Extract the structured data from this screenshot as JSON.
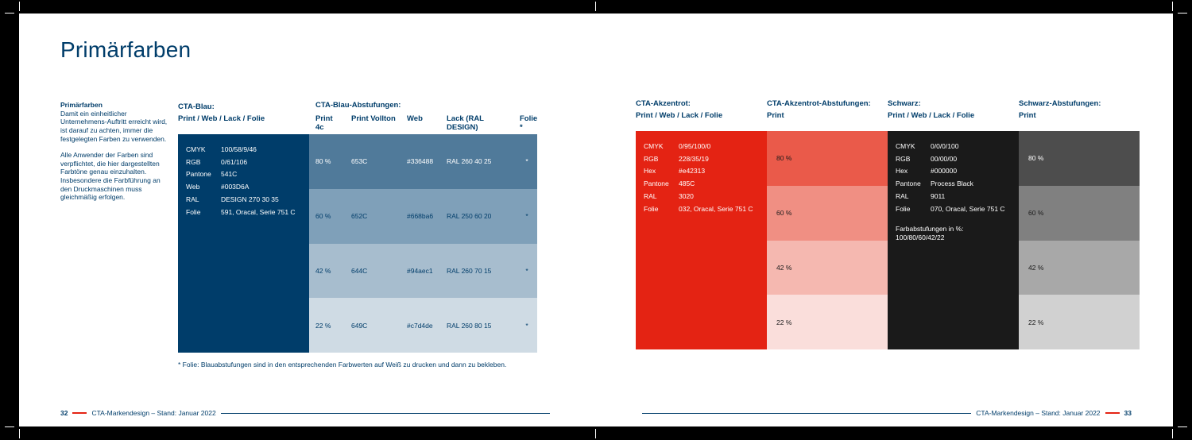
{
  "title": "Primärfarben",
  "intro": {
    "heading": "Primärfarben",
    "p1": "Damit ein einheitlicher Unternehmens-Auftritt erreicht wird, ist darauf zu achten, immer die festgelegten Farben zu verwenden.",
    "p2": "Alle Anwender der Farben sind verpflichtet, die hier dargestellten Farbtöne genau einzuhalten. Insbesondere die Farbführung an den Druckmaschinen muss gleichmäßig erfolgen."
  },
  "blue": {
    "title": "CTA-Blau:",
    "sub": "Print / Web / Lack / Folie",
    "bg": "#003d6a",
    "rows": [
      {
        "k": "CMYK",
        "v": "100/58/9/46"
      },
      {
        "k": "RGB",
        "v": "0/61/106"
      },
      {
        "k": "Pantone",
        "v": "541C"
      },
      {
        "k": "Web",
        "v": "#003D6A"
      },
      {
        "k": "RAL",
        "v": "DESIGN 270 30 35"
      },
      {
        "k": "Folie",
        "v": "591, Oracal, Serie 751 C"
      }
    ]
  },
  "blue_tints": {
    "title": "CTA-Blau-Abstufungen:",
    "headers": {
      "pct": "Print 4c",
      "pv": "Print Vollton",
      "web": "Web",
      "lack": "Lack (RAL DESIGN)",
      "folie": "Folie *"
    },
    "rows": [
      {
        "pct": "80 %",
        "pv": "653C",
        "web": "#336488",
        "lack": "RAL 260 40 25",
        "folie": "*",
        "bg": "#507a9a",
        "fg": "#ffffff"
      },
      {
        "pct": "60 %",
        "pv": "652C",
        "web": "#668ba6",
        "lack": "RAL 250 60 20",
        "folie": "*",
        "bg": "#7fa0b9",
        "fg": "#003d6a"
      },
      {
        "pct": "42 %",
        "pv": "644C",
        "web": "#94aec1",
        "lack": "RAL 260 70 15",
        "folie": "*",
        "bg": "#a7bdce",
        "fg": "#003d6a"
      },
      {
        "pct": "22 %",
        "pv": "649C",
        "web": "#c7d4de",
        "lack": "RAL 260 80 15",
        "folie": "*",
        "bg": "#cfdbe4",
        "fg": "#003d6a"
      }
    ]
  },
  "footnote": "* Folie: Blauabstufungen sind in den entsprechenden Farbwerten auf Weiß zu drucken und dann zu bekleben.",
  "red": {
    "title": "CTA-Akzentrot:",
    "sub": "Print / Web / Lack / Folie",
    "bg": "#e42313",
    "rows": [
      {
        "k": "CMYK",
        "v": "0/95/100/0"
      },
      {
        "k": "RGB",
        "v": "228/35/19"
      },
      {
        "k": "Hex",
        "v": "#e42313"
      },
      {
        "k": "Pantone",
        "v": "485C"
      },
      {
        "k": "RAL",
        "v": "3020"
      },
      {
        "k": "Folie",
        "v": "032, Oracal, Serie 751 C"
      }
    ]
  },
  "red_tints": {
    "title": "CTA-Akzentrot-Abstufungen:",
    "sub": "Print",
    "rows": [
      {
        "pct": "80 %",
        "bg": "#ea5a4a",
        "fg": "#1a1a1a"
      },
      {
        "pct": "60 %",
        "bg": "#f08f83",
        "fg": "#1a1a1a"
      },
      {
        "pct": "42 %",
        "bg": "#f5b8b0",
        "fg": "#1a1a1a"
      },
      {
        "pct": "22 %",
        "bg": "#fadedb",
        "fg": "#1a1a1a"
      }
    ]
  },
  "black": {
    "title": "Schwarz:",
    "sub": "Print / Web / Lack / Folie",
    "bg": "#1a1a1a",
    "rows": [
      {
        "k": "CMYK",
        "v": "0/0/0/100"
      },
      {
        "k": "RGB",
        "v": "00/00/00"
      },
      {
        "k": "Hex",
        "v": "#000000"
      },
      {
        "k": "Pantone",
        "v": "Process Black"
      },
      {
        "k": "RAL",
        "v": "9011"
      },
      {
        "k": "Folie",
        "v": "070, Oracal, Serie 751 C"
      }
    ],
    "note": "Farbabstufungen in %:\n100/80/60/42/22"
  },
  "black_tints": {
    "title": "Schwarz-Abstufungen:",
    "sub": "Print",
    "rows": [
      {
        "pct": "80 %",
        "bg": "#4d4d4d",
        "fg": "#ffffff"
      },
      {
        "pct": "60 %",
        "bg": "#808080",
        "fg": "#1a1a1a"
      },
      {
        "pct": "42 %",
        "bg": "#a8a8a8",
        "fg": "#1a1a1a"
      },
      {
        "pct": "22 %",
        "bg": "#d1d1d1",
        "fg": "#1a1a1a"
      }
    ]
  },
  "footer": {
    "text": "CTA-Markendesign – Stand: Januar 2022",
    "page_left": "32",
    "page_right": "33"
  }
}
